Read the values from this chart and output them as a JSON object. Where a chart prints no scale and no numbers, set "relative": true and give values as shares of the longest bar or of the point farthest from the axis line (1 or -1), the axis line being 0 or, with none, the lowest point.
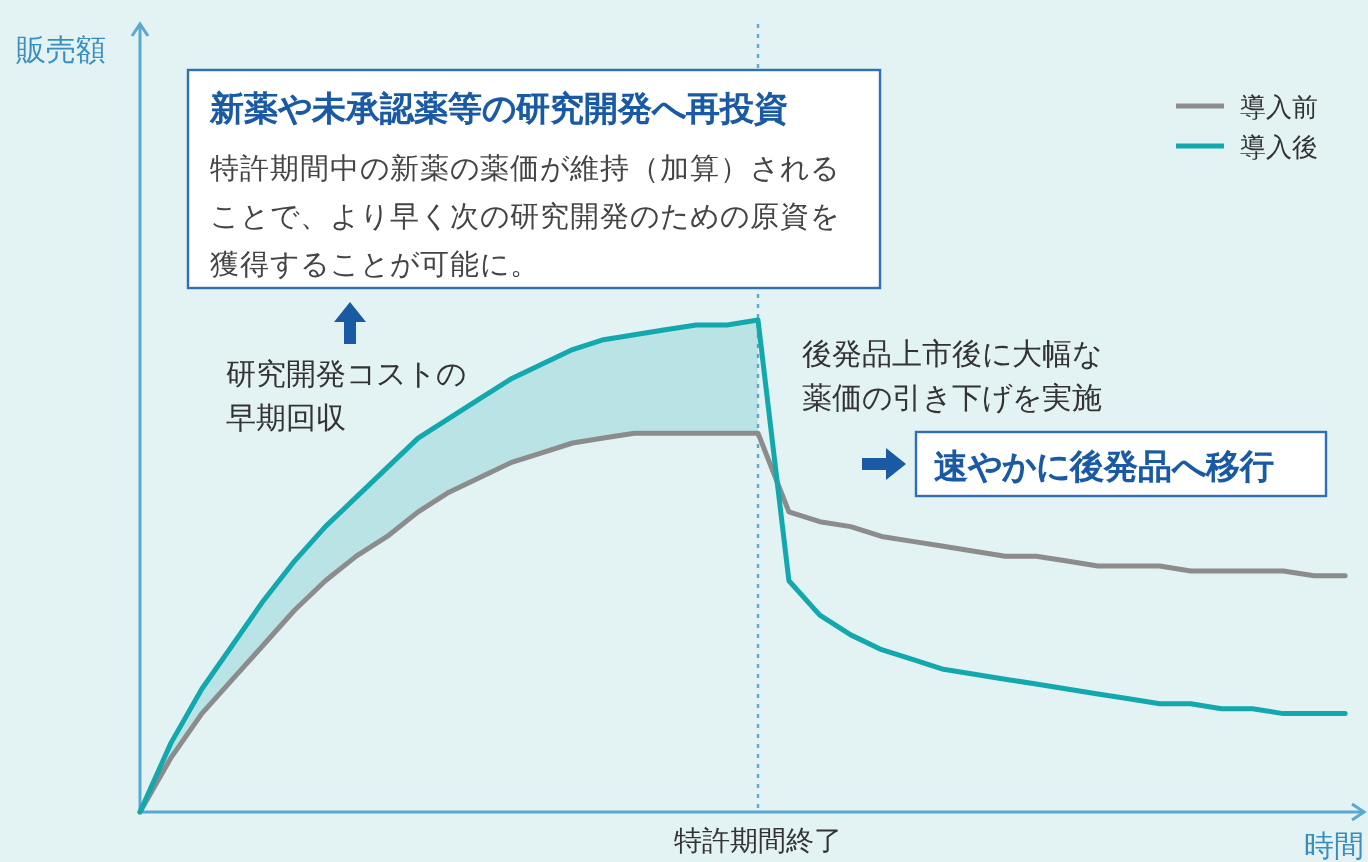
{
  "chart_data": {
    "type": "line",
    "relative": true,
    "xlabel": "時間",
    "legend": "top right",
    "marker": "none",
    "line_style": "solid",
    "categories": [
      null,
      null,
      null,
      null,
      null,
      null,
      null,
      null,
      null,
      null,
      null,
      null,
      null,
      null,
      null,
      null,
      null,
      null,
      null,
      null,
      null,
      null,
      null,
      null,
      null,
      null,
      null,
      null,
      null,
      null,
      null,
      null,
      null,
      null,
      null,
      null,
      null,
      null,
      null,
      null
    ],
    "series": [
      {
        "name": "導入前",
        "color": "#8c8c8c",
        "values": [
          0,
          0.11,
          0.2,
          0.27,
          0.34,
          0.41,
          0.47,
          0.52,
          0.56,
          0.61,
          0.65,
          0.68,
          0.71,
          0.73,
          0.75,
          0.76,
          0.77,
          0.77,
          0.77,
          0.77,
          0.77,
          0.61,
          0.59,
          0.58,
          0.56,
          0.55,
          0.54,
          0.53,
          0.52,
          0.52,
          0.51,
          0.5,
          0.5,
          0.5,
          0.49,
          0.49,
          0.49,
          0.49,
          0.48,
          0.48
        ]
      },
      {
        "name": "導入後",
        "color": "#12a8ad",
        "values": [
          0,
          0.14,
          0.25,
          0.34,
          0.43,
          0.51,
          0.58,
          0.64,
          0.7,
          0.76,
          0.8,
          0.84,
          0.88,
          0.91,
          0.94,
          0.96,
          0.97,
          0.98,
          0.99,
          0.99,
          1,
          0.47,
          0.4,
          0.36,
          0.33,
          0.31,
          0.29,
          0.28,
          0.27,
          0.26,
          0.25,
          0.24,
          0.23,
          0.22,
          0.22,
          0.21,
          0.21,
          0.2,
          0.2,
          0.2
        ],
        "lower": [
          0,
          0.11,
          0.2,
          0.27,
          0.34,
          0.41,
          0.47,
          0.52,
          0.56,
          0.61,
          0.65,
          0.68,
          0.71,
          0.73,
          0.75,
          0.76,
          0.77,
          0.77,
          0.77,
          0.77,
          0.77,
          null,
          null,
          null,
          null,
          null,
          null,
          null,
          null,
          null,
          null,
          null,
          null,
          null,
          null,
          null,
          null,
          null,
          null,
          null
        ],
        "upper": [
          0,
          0.14,
          0.25,
          0.34,
          0.43,
          0.51,
          0.58,
          0.64,
          0.7,
          0.76,
          0.8,
          0.84,
          0.88,
          0.91,
          0.94,
          0.96,
          0.97,
          0.98,
          0.99,
          0.99,
          1,
          null,
          null,
          null,
          null,
          null,
          null,
          null,
          null,
          null,
          null,
          null,
          null,
          null,
          null,
          null,
          null,
          null,
          null,
          null
        ]
      }
    ],
    "ref_lines": [
      {
        "axis": "x",
        "label": "特許期間終了",
        "line_style": "dotted",
        "color": "#5aa9cf"
      }
    ],
    "annotations": [
      "新薬や未承認薬等の研究開発へ再投資",
      "特許期間中の新薬の薬価が維持（加算）されることで、より早く次の研究開発のための原資を獲得することが可能に。",
      "研究開発コストの早期回収",
      "後発品上市後に大幅な薬価の引き下げを実施",
      "速やかに後発品へ移行",
      "販売額"
    ]
  }
}
